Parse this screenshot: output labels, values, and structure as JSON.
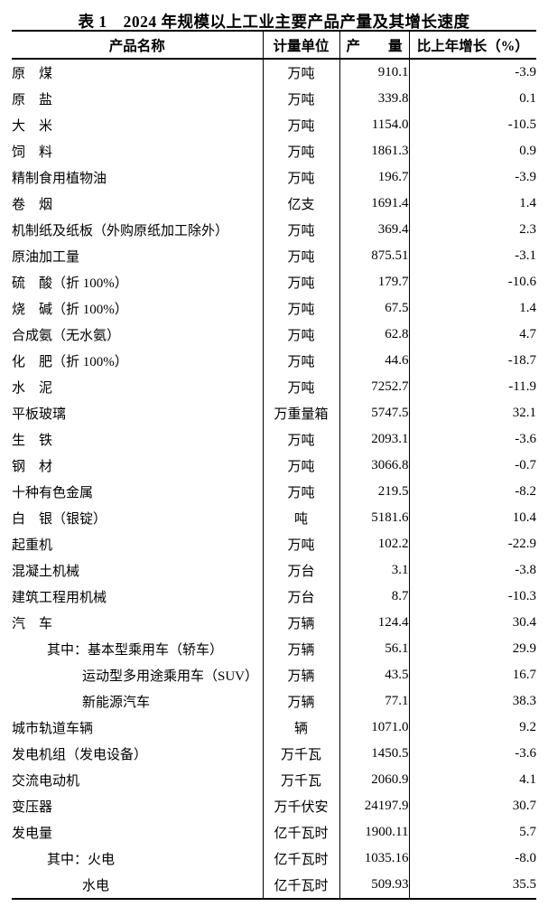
{
  "colors": {
    "background": "#ffffff",
    "text": "#000000",
    "table_border": "#000000"
  },
  "title": "表 1　2024 年规模以上工业主要产品产量及其增长速度",
  "table": {
    "headers": {
      "product": "产品名称",
      "unit": "计量单位",
      "output": "产　　量",
      "growth": "比上年增长（%）"
    },
    "rows": [
      {
        "name": "原　煤",
        "indent": 0,
        "unit": "万吨",
        "output": "910.1",
        "growth": "-3.9"
      },
      {
        "name": "原　盐",
        "indent": 0,
        "unit": "万吨",
        "output": "339.8",
        "growth": "0.1"
      },
      {
        "name": "大　米",
        "indent": 0,
        "unit": "万吨",
        "output": "1154.0",
        "growth": "-10.5"
      },
      {
        "name": "饲　料",
        "indent": 0,
        "unit": "万吨",
        "output": "1861.3",
        "growth": "0.9"
      },
      {
        "name": "精制食用植物油",
        "indent": 0,
        "unit": "万吨",
        "output": "196.7",
        "growth": "-3.9"
      },
      {
        "name": "卷　烟",
        "indent": 0,
        "unit": "亿支",
        "output": "1691.4",
        "growth": "1.4"
      },
      {
        "name": "机制纸及纸板（外购原纸加工除外）",
        "indent": 0,
        "unit": "万吨",
        "output": "369.4",
        "growth": "2.3"
      },
      {
        "name": "原油加工量",
        "indent": 0,
        "unit": "万吨",
        "output": "875.51",
        "growth": "-3.1"
      },
      {
        "name": "硫　酸（折 100%）",
        "indent": 0,
        "unit": "万吨",
        "output": "179.7",
        "growth": "-10.6"
      },
      {
        "name": "烧　碱（折 100%）",
        "indent": 0,
        "unit": "万吨",
        "output": "67.5",
        "growth": "1.4"
      },
      {
        "name": "合成氨（无水氨）",
        "indent": 0,
        "unit": "万吨",
        "output": "62.8",
        "growth": "4.7"
      },
      {
        "name": "化　肥（折 100%）",
        "indent": 0,
        "unit": "万吨",
        "output": "44.6",
        "growth": "-18.7"
      },
      {
        "name": "水　泥",
        "indent": 0,
        "unit": "万吨",
        "output": "7252.7",
        "growth": "-11.9"
      },
      {
        "name": "平板玻璃",
        "indent": 0,
        "unit": "万重量箱",
        "output": "5747.5",
        "growth": "32.1"
      },
      {
        "name": "生　铁",
        "indent": 0,
        "unit": "万吨",
        "output": "2093.1",
        "growth": "-3.6"
      },
      {
        "name": "钢　材",
        "indent": 0,
        "unit": "万吨",
        "output": "3066.8",
        "growth": "-0.7"
      },
      {
        "name": "十种有色金属",
        "indent": 0,
        "unit": "万吨",
        "output": "219.5",
        "growth": "-8.2"
      },
      {
        "name": "白　银（银锭）",
        "indent": 0,
        "unit": "吨",
        "output": "5181.6",
        "growth": "10.4"
      },
      {
        "name": "起重机",
        "indent": 0,
        "unit": "万吨",
        "output": "102.2",
        "growth": "-22.9"
      },
      {
        "name": "混凝土机械",
        "indent": 0,
        "unit": "万台",
        "output": "3.1",
        "growth": "-3.8"
      },
      {
        "name": "建筑工程用机械",
        "indent": 0,
        "unit": "万台",
        "output": "8.7",
        "growth": "-10.3"
      },
      {
        "name": "汽　车",
        "indent": 0,
        "unit": "万辆",
        "output": "124.4",
        "growth": "30.4"
      },
      {
        "name": "其中：基本型乘用车（轿车）",
        "indent": 1,
        "unit": "万辆",
        "output": "56.1",
        "growth": "29.9"
      },
      {
        "name": "运动型多用途乘用车（SUV）",
        "indent": 2,
        "unit": "万辆",
        "output": "43.5",
        "growth": "16.7"
      },
      {
        "name": "新能源汽车",
        "indent": 2,
        "unit": "万辆",
        "output": "77.1",
        "growth": "38.3"
      },
      {
        "name": "城市轨道车辆",
        "indent": 0,
        "unit": "辆",
        "output": "1071.0",
        "growth": "9.2"
      },
      {
        "name": "发电机组（发电设备）",
        "indent": 0,
        "unit": "万千瓦",
        "output": "1450.5",
        "growth": "-3.6"
      },
      {
        "name": "交流电动机",
        "indent": 0,
        "unit": "万千瓦",
        "output": "2060.9",
        "growth": "4.1"
      },
      {
        "name": "变压器",
        "indent": 0,
        "unit": "万千伏安",
        "output": "24197.9",
        "growth": "30.7"
      },
      {
        "name": "发电量",
        "indent": 0,
        "unit": "亿千瓦时",
        "output": "1900.11",
        "growth": "5.7"
      },
      {
        "name": "其中：火电",
        "indent": 1,
        "unit": "亿千瓦时",
        "output": "1035.16",
        "growth": "-8.0"
      },
      {
        "name": "水电",
        "indent": 2,
        "unit": "亿千瓦时",
        "output": "509.93",
        "growth": "35.5"
      }
    ]
  }
}
